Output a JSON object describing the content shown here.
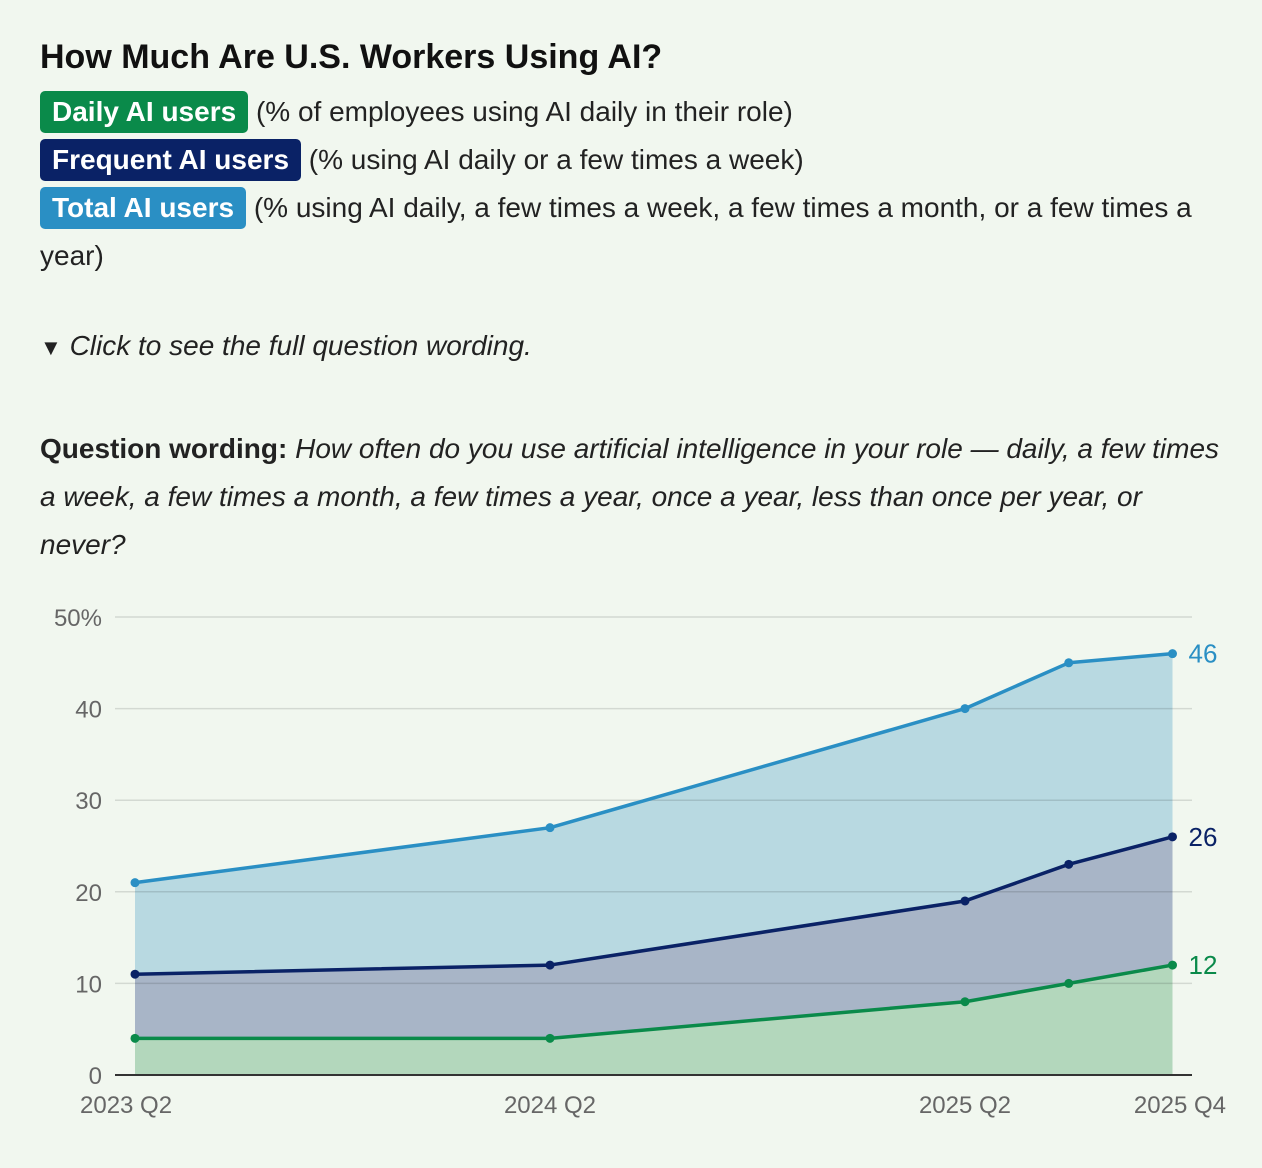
{
  "title": "How Much Are U.S. Workers Using AI?",
  "legend": [
    {
      "label": "Daily AI users",
      "desc": " (% of employees using AI daily in their role)",
      "color": "#0a8a4a"
    },
    {
      "label": "Frequent AI users",
      "desc": " (% using AI daily or a few times a week)",
      "color": "#0a2266"
    },
    {
      "label": "Total AI users",
      "desc": " (% using AI daily, a few times a week, a few times a month, or a few times a year)",
      "color": "#2a8fc4"
    }
  ],
  "toggle": {
    "icon": "triangle-down-icon",
    "label": "Click to see the full question wording."
  },
  "wording": {
    "label": "Question wording:",
    "text": " How often do you use artificial intelligence in your role — daily, a few times a week, a few times a month, a few times a year, once a year, less than once per year, or never?"
  },
  "chart_data": {
    "type": "area",
    "x": [
      "2023 Q2",
      "2024 Q2",
      "2025 Q2",
      "2025 Q3",
      "2025 Q4"
    ],
    "x_tick_labels": [
      "2023 Q2",
      "2024 Q2",
      "2025 Q2",
      "2025 Q4"
    ],
    "y_tick_labels": [
      "0",
      "10",
      "20",
      "30",
      "40",
      "50%"
    ],
    "ylim": [
      0,
      50
    ],
    "grid": true,
    "series": [
      {
        "name": "Total AI users",
        "values": [
          21,
          27,
          40,
          45,
          46
        ],
        "color": "#2a8fc4",
        "fill": "#b8d9e1",
        "end_label": "46"
      },
      {
        "name": "Frequent AI users",
        "values": [
          11,
          12,
          19,
          23,
          26
        ],
        "color": "#0a2266",
        "fill": "#a8b5c7",
        "end_label": "26"
      },
      {
        "name": "Daily AI users",
        "values": [
          4,
          4,
          8,
          10,
          12
        ],
        "color": "#0a8a4a",
        "fill": "#b3d7bc",
        "end_label": "12"
      }
    ]
  }
}
